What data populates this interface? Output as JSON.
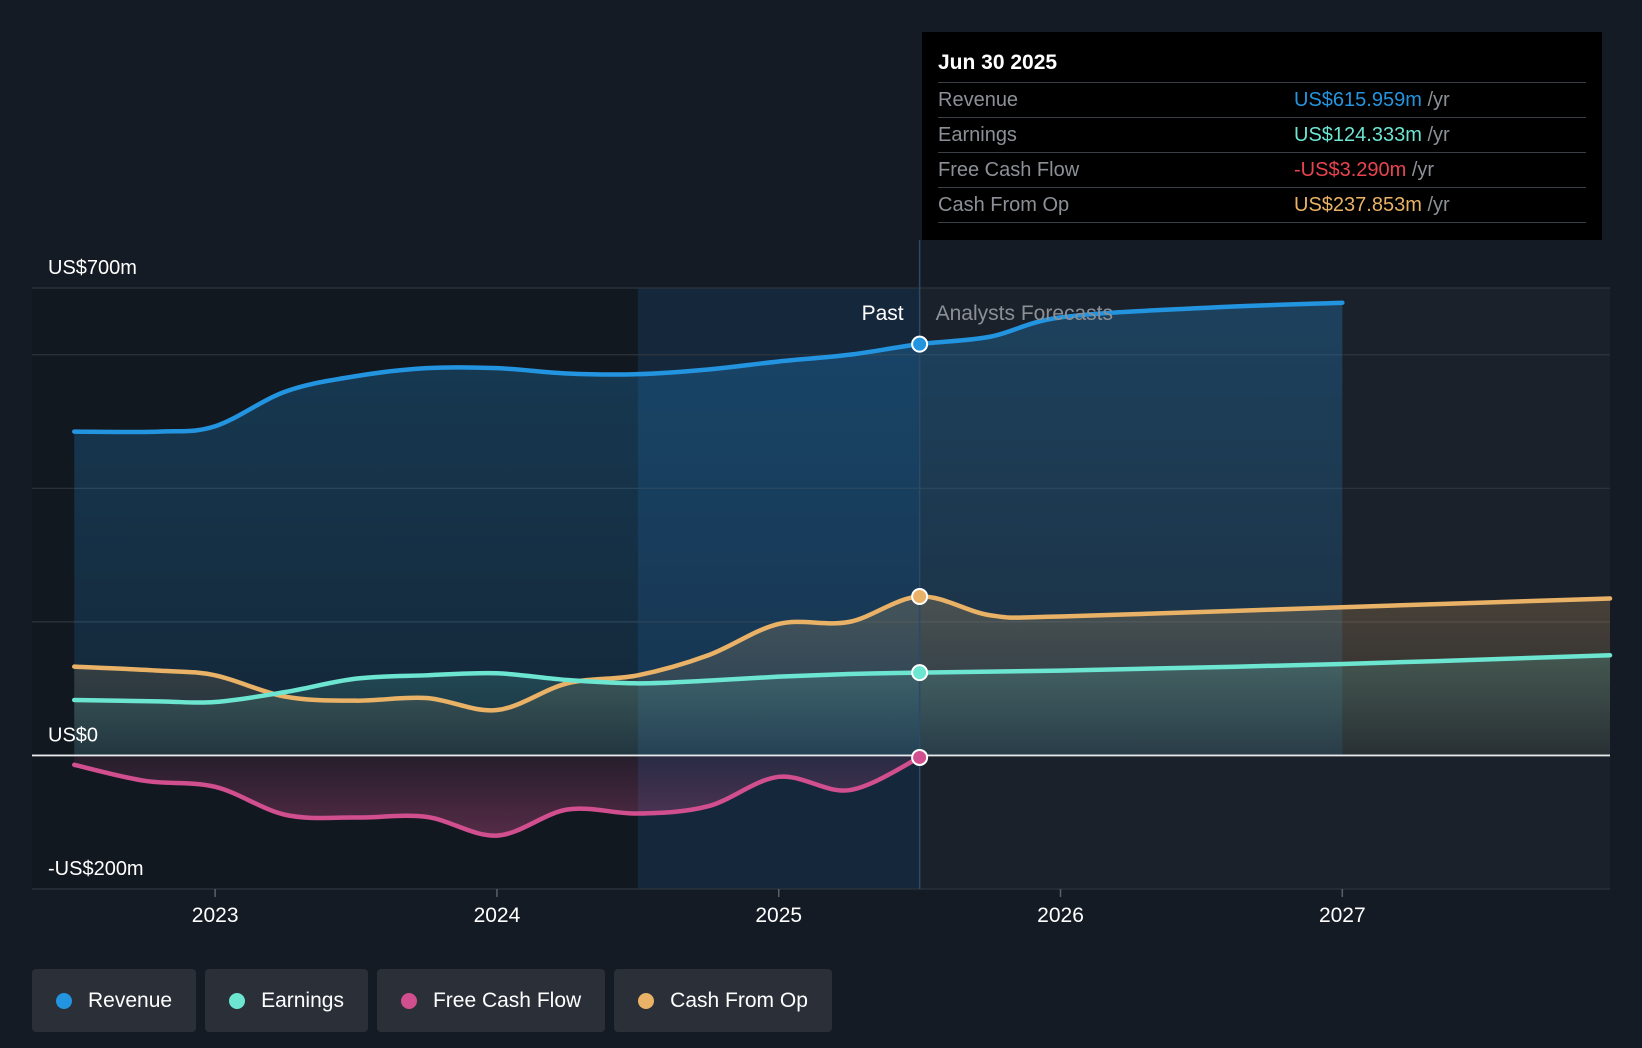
{
  "colors": {
    "revenue": "#2394df",
    "earnings": "#6ce5d1",
    "free_cash_flow": "#d14f8e",
    "cash_from_op": "#e9b266"
  },
  "tooltip": {
    "date": "Jun 30 2025",
    "unit": "/yr",
    "rows": [
      {
        "label": "Revenue",
        "value": "US$615.959m"
      },
      {
        "label": "Earnings",
        "value": "US$124.333m"
      },
      {
        "label": "Free Cash Flow",
        "value": "-US$3.290m"
      },
      {
        "label": "Cash From Op",
        "value": "US$237.853m"
      }
    ]
  },
  "legend": [
    "Revenue",
    "Earnings",
    "Free Cash Flow",
    "Cash From Op"
  ],
  "chart_data": {
    "type": "line",
    "title": "",
    "x_range": [
      2022.35,
      2027.95
    ],
    "ylim": [
      -200,
      700
    ],
    "y_tick_labels": [
      {
        "value": 700,
        "label": "US$700m"
      },
      {
        "value": 0,
        "label": "US$0"
      },
      {
        "value": -200,
        "label": "-US$200m"
      }
    ],
    "gridlines": [
      700,
      600,
      400,
      200,
      0,
      -200
    ],
    "x_ticks": [
      2023,
      2024,
      2025,
      2026,
      2027
    ],
    "x_tick_labels": [
      "2023",
      "2024",
      "2025",
      "2026",
      "2027"
    ],
    "past_label": "Past",
    "forecast_label": "Analysts Forecasts",
    "highlight_start": 2024.5,
    "divider_x": 2025.5,
    "forecast_end": 2027.0,
    "series": [
      {
        "name": "Revenue",
        "points": [
          [
            2022.5,
            485
          ],
          [
            2022.8,
            485
          ],
          [
            2023.0,
            493
          ],
          [
            2023.25,
            545
          ],
          [
            2023.5,
            568
          ],
          [
            2023.75,
            580
          ],
          [
            2024.0,
            580
          ],
          [
            2024.25,
            572
          ],
          [
            2024.5,
            571
          ],
          [
            2024.75,
            578
          ],
          [
            2025.0,
            590
          ],
          [
            2025.25,
            600
          ],
          [
            2025.5,
            616
          ],
          [
            2025.75,
            627
          ],
          [
            2026.0,
            656
          ],
          [
            2026.5,
            670
          ],
          [
            2027.0,
            678
          ]
        ]
      },
      {
        "name": "Earnings",
        "points": [
          [
            2022.5,
            83
          ],
          [
            2022.8,
            81
          ],
          [
            2023.0,
            80
          ],
          [
            2023.25,
            95
          ],
          [
            2023.5,
            115
          ],
          [
            2023.75,
            120
          ],
          [
            2024.0,
            123
          ],
          [
            2024.25,
            113
          ],
          [
            2024.5,
            108
          ],
          [
            2024.75,
            112
          ],
          [
            2025.0,
            118
          ],
          [
            2025.25,
            122
          ],
          [
            2025.5,
            124
          ],
          [
            2026.0,
            127
          ],
          [
            2027.0,
            137
          ],
          [
            2027.95,
            150
          ]
        ]
      },
      {
        "name": "Free Cash Flow",
        "points": [
          [
            2022.5,
            -14
          ],
          [
            2022.75,
            -38
          ],
          [
            2023.0,
            -47
          ],
          [
            2023.25,
            -89
          ],
          [
            2023.5,
            -93
          ],
          [
            2023.75,
            -92
          ],
          [
            2024.0,
            -120
          ],
          [
            2024.25,
            -81
          ],
          [
            2024.5,
            -87
          ],
          [
            2024.75,
            -76
          ],
          [
            2025.0,
            -32
          ],
          [
            2025.25,
            -52
          ],
          [
            2025.5,
            -3
          ]
        ]
      },
      {
        "name": "Cash From Op",
        "points": [
          [
            2022.5,
            133
          ],
          [
            2022.8,
            127
          ],
          [
            2023.0,
            120
          ],
          [
            2023.25,
            88
          ],
          [
            2023.5,
            82
          ],
          [
            2023.75,
            86
          ],
          [
            2024.0,
            68
          ],
          [
            2024.25,
            108
          ],
          [
            2024.5,
            120
          ],
          [
            2024.75,
            150
          ],
          [
            2025.0,
            197
          ],
          [
            2025.25,
            200
          ],
          [
            2025.5,
            238
          ],
          [
            2025.75,
            210
          ],
          [
            2026.0,
            208
          ],
          [
            2027.0,
            222
          ],
          [
            2027.95,
            235
          ]
        ]
      }
    ]
  }
}
